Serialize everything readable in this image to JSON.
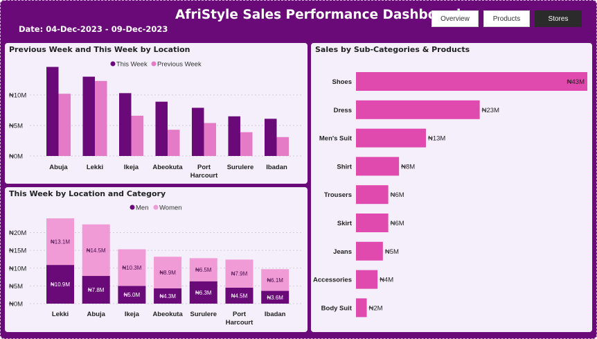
{
  "header": {
    "title": "AfriStyle Sales Performance Dashboard",
    "date_range": "Date: 04-Dec-2023 - 09-Dec-2023",
    "nav": [
      {
        "label": "Overview",
        "active": false
      },
      {
        "label": "Products",
        "active": false
      },
      {
        "label": "Stores",
        "active": true
      }
    ]
  },
  "colors": {
    "background": "#6a0a78",
    "panel": "#f4effa",
    "this_week": "#6a0a78",
    "previous_week": "#e57ac6",
    "men": "#6a0a78",
    "women": "#f09ad6",
    "subcategory_bar": "#e04aae"
  },
  "chart_data": [
    {
      "type": "bar",
      "title": "Previous Week and This Week by Location",
      "categories": [
        "Abuja",
        "Lekki",
        "Ikeja",
        "Abeokuta",
        "Port Harcourt",
        "Surulere",
        "Ibadan"
      ],
      "series": [
        {
          "name": "This Week",
          "values": [
            14.6,
            13.0,
            10.3,
            8.9,
            7.9,
            6.5,
            6.1
          ]
        },
        {
          "name": "Previous Week",
          "values": [
            10.2,
            12.3,
            6.6,
            4.3,
            5.4,
            3.9,
            3.1
          ]
        }
      ],
      "y_ticks": [
        "₦0M",
        "₦5M",
        "₦10M"
      ],
      "ylim": [
        0,
        15
      ],
      "legend_position": "top-center",
      "grid": true
    },
    {
      "type": "bar",
      "stacked": true,
      "title": "This Week by Location and Category",
      "categories": [
        "Lekki",
        "Abuja",
        "Ikeja",
        "Abeokuta",
        "Surulere",
        "Port Harcourt",
        "Ibadan"
      ],
      "series": [
        {
          "name": "Men",
          "values": [
            10.9,
            7.8,
            5.0,
            4.3,
            6.3,
            4.5,
            3.6
          ],
          "labels": [
            "₦10.9M",
            "₦7.8M",
            "₦5.0M",
            "₦4.3M",
            "₦6.3M",
            "₦4.5M",
            "₦3.6M"
          ]
        },
        {
          "name": "Women",
          "values": [
            13.1,
            14.5,
            10.3,
            8.9,
            6.5,
            7.9,
            6.1
          ],
          "labels": [
            "₦13.1M",
            "₦14.5M",
            "₦10.3M",
            "₦8.9M",
            "₦6.5M",
            "₦7.9M",
            "₦6.1M"
          ]
        }
      ],
      "y_ticks": [
        "₦0M",
        "₦5M",
        "₦10M",
        "₦15M",
        "₦20M"
      ],
      "ylim": [
        0,
        24
      ],
      "legend_position": "top-center",
      "grid": true
    },
    {
      "type": "bar",
      "orientation": "horizontal",
      "title": "Sales by Sub-Categories & Products",
      "categories": [
        "Shoes",
        "Dress",
        "Men's Suit",
        "Shirt",
        "Trousers",
        "Skirt",
        "Jeans",
        "Accessories",
        "Body Suit"
      ],
      "values": [
        43,
        23,
        13,
        8,
        6,
        6,
        5,
        4,
        2
      ],
      "labels": [
        "₦43M",
        "₦23M",
        "₦13M",
        "₦8M",
        "₦6M",
        "₦6M",
        "₦5M",
        "₦4M",
        "₦2M"
      ],
      "xlim": [
        0,
        43
      ]
    }
  ]
}
